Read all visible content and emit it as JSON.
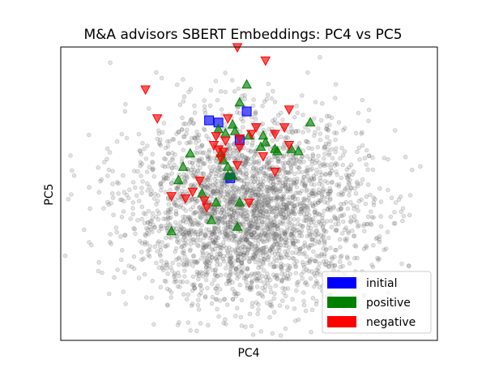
{
  "chart_data": {
    "type": "scatter",
    "title": "M&A advisors SBERT Embeddings: PC4 vs PC5",
    "xlabel": "PC4",
    "ylabel": "PC5",
    "xlim": [
      -4.0,
      4.0
    ],
    "ylim": [
      -3.3,
      3.3
    ],
    "grid": false,
    "ticks_visible": false,
    "legend": {
      "placement": "bottom-right",
      "entries": [
        {
          "label": "initial",
          "color": "#0000ff"
        },
        {
          "label": "positive",
          "color": "#008000"
        },
        {
          "label": "negative",
          "color": "#ff0000"
        }
      ]
    },
    "background_cloud": {
      "color": "#808080",
      "count": 3000,
      "center": [
        0.0,
        -0.4
      ],
      "spread": [
        1.25,
        1.05
      ],
      "marker": "circle"
    },
    "series": [
      {
        "name": "initial",
        "color": "#0000ff",
        "marker": "square",
        "points": [
          [
            -0.85,
            1.65
          ],
          [
            -0.65,
            1.6
          ],
          [
            -0.05,
            1.85
          ],
          [
            -0.2,
            1.2
          ],
          [
            -0.4,
            0.35
          ]
        ]
      },
      {
        "name": "positive",
        "color": "#008000",
        "marker": "triangle-up",
        "points": [
          [
            -0.05,
            2.45
          ],
          [
            -0.2,
            2.05
          ],
          [
            -0.35,
            1.55
          ],
          [
            -0.65,
            1.45
          ],
          [
            -0.5,
            1.35
          ],
          [
            -0.3,
            1.4
          ],
          [
            0.0,
            1.3
          ],
          [
            0.35,
            1.15
          ],
          [
            0.25,
            1.05
          ],
          [
            0.55,
            1.0
          ],
          [
            0.9,
            1.0
          ],
          [
            1.3,
            1.6
          ],
          [
            1.05,
            0.95
          ],
          [
            0.6,
            0.95
          ],
          [
            -1.25,
            0.9
          ],
          [
            -0.6,
            0.9
          ],
          [
            -0.55,
            0.75
          ],
          [
            -0.45,
            0.6
          ],
          [
            -1.4,
            0.6
          ],
          [
            -1.5,
            0.3
          ],
          [
            -0.35,
            0.4
          ],
          [
            -0.7,
            -0.2
          ],
          [
            -1.0,
            0.0
          ],
          [
            -0.2,
            -0.2
          ],
          [
            -0.8,
            -0.6
          ],
          [
            -0.25,
            -0.75
          ],
          [
            -1.65,
            -0.85
          ],
          [
            -0.45,
            0.4
          ],
          [
            0.3,
            1.3
          ]
        ]
      },
      {
        "name": "negative",
        "color": "#ff0000",
        "marker": "triangle-down",
        "points": [
          [
            -0.25,
            3.3
          ],
          [
            0.35,
            3.0
          ],
          [
            -2.2,
            2.35
          ],
          [
            -1.95,
            1.7
          ],
          [
            0.85,
            1.9
          ],
          [
            0.75,
            1.5
          ],
          [
            0.15,
            1.5
          ],
          [
            -0.45,
            1.7
          ],
          [
            -0.7,
            1.3
          ],
          [
            -0.2,
            1.25
          ],
          [
            0.05,
            1.35
          ],
          [
            0.55,
            1.35
          ],
          [
            0.85,
            1.1
          ],
          [
            -0.5,
            1.2
          ],
          [
            -0.75,
            1.1
          ],
          [
            -0.2,
            1.05
          ],
          [
            -0.55,
            0.95
          ],
          [
            -0.6,
            0.8
          ],
          [
            0.3,
            0.85
          ],
          [
            -0.25,
            0.65
          ],
          [
            0.55,
            0.5
          ],
          [
            -1.05,
            0.3
          ],
          [
            -1.2,
            0.05
          ],
          [
            -1.35,
            -0.1
          ],
          [
            -0.95,
            -0.15
          ],
          [
            0.0,
            -0.2
          ],
          [
            -1.65,
            -0.05
          ],
          [
            -0.9,
            -0.3
          ],
          [
            -0.65,
            1.0
          ]
        ]
      }
    ]
  }
}
